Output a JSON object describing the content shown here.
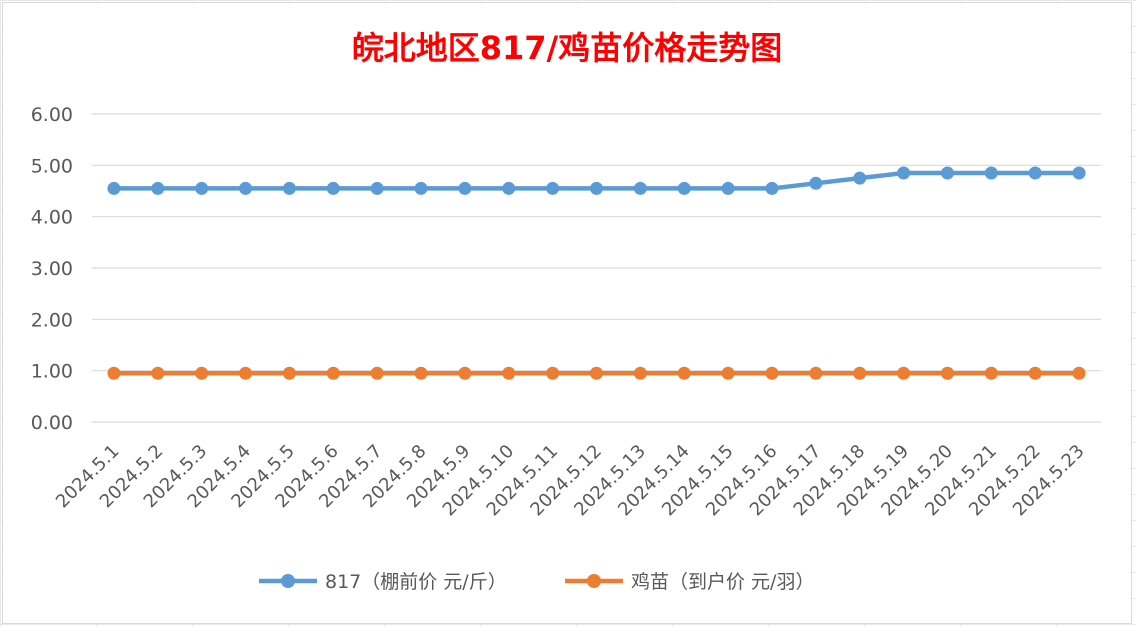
{
  "chart_data": {
    "type": "line",
    "title": "皖北地区817/鸡苗价格走势图",
    "categories": [
      "2024.5.1",
      "2024.5.2",
      "2024.5.3",
      "2024.5.4",
      "2024.5.5",
      "2024.5.6",
      "2024.5.7",
      "2024.5.8",
      "2024.5.9",
      "2024.5.10",
      "2024.5.11",
      "2024.5.12",
      "2024.5.13",
      "2024.5.14",
      "2024.5.15",
      "2024.5.16",
      "2024.5.17",
      "2024.5.18",
      "2024.5.19",
      "2024.5.20",
      "2024.5.21",
      "2024.5.22",
      "2024.5.23"
    ],
    "y_ticks": [
      "0.00",
      "1.00",
      "2.00",
      "3.00",
      "4.00",
      "5.00",
      "6.00"
    ],
    "ylim": [
      0,
      6
    ],
    "grid": true,
    "legend_position": "bottom",
    "series": [
      {
        "name": "817（棚前价 元/斤）",
        "color": "#5b9bd5",
        "values": [
          4.55,
          4.55,
          4.55,
          4.55,
          4.55,
          4.55,
          4.55,
          4.55,
          4.55,
          4.55,
          4.55,
          4.55,
          4.55,
          4.55,
          4.55,
          4.55,
          4.65,
          4.75,
          4.85,
          4.85,
          4.85,
          4.85,
          4.85
        ]
      },
      {
        "name": "鸡苗（到户价 元/羽）",
        "color": "#ed7d31",
        "values": [
          0.95,
          0.95,
          0.95,
          0.95,
          0.95,
          0.95,
          0.95,
          0.95,
          0.95,
          0.95,
          0.95,
          0.95,
          0.95,
          0.95,
          0.95,
          0.95,
          0.95,
          0.95,
          0.95,
          0.95,
          0.95,
          0.95,
          0.95
        ]
      }
    ]
  }
}
